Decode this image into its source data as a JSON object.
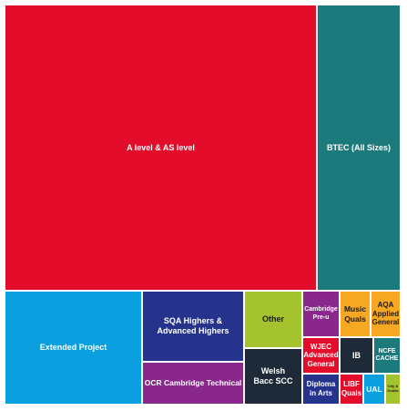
{
  "chart_data": {
    "type": "treemap",
    "title": "",
    "tiles": [
      {
        "label": "A level & AS level",
        "color": "#e30d2b",
        "text_color": "#ffffff"
      },
      {
        "label": "BTEC (All Sizes)",
        "color": "#1d7a7c",
        "text_color": "#ffffff"
      },
      {
        "label": "Extended Project",
        "color": "#0a9fdf",
        "text_color": "#ffffff"
      },
      {
        "label": "SQA Highers & Advanced Highers",
        "color": "#26338c",
        "text_color": "#ffffff"
      },
      {
        "label": "OCR Cambridge Technical",
        "color": "#8a278c",
        "text_color": "#ffffff"
      },
      {
        "label": "Other",
        "color": "#a5c32e",
        "text_color": "#1a1a1a"
      },
      {
        "label": "Welsh Bacc SCC",
        "color": "#1e2a38",
        "text_color": "#ffffff"
      },
      {
        "label": "Cambridge Pre-u",
        "color": "#8a278c",
        "text_color": "#ffffff"
      },
      {
        "label": "WJEC Advanced General",
        "color": "#e30d2b",
        "text_color": "#ffffff"
      },
      {
        "label": "Diploma in Arts",
        "color": "#26338c",
        "text_color": "#ffffff"
      },
      {
        "label": "Music Quals",
        "color": "#f7a822",
        "text_color": "#1a1a1a"
      },
      {
        "label": "AQA Applied General",
        "color": "#f7a822",
        "text_color": "#1a1a1a"
      },
      {
        "label": "IB",
        "color": "#1e2a38",
        "text_color": "#ffffff"
      },
      {
        "label": "NCFE CACHE",
        "color": "#1d7a7c",
        "text_color": "#ffffff"
      },
      {
        "label": "LIBF Quals",
        "color": "#e30d2b",
        "text_color": "#ffffff"
      },
      {
        "label": "UAL",
        "color": "#0a9fdf",
        "text_color": "#ffffff"
      },
      {
        "label": "City & Guilds",
        "color": "#a5c32e",
        "text_color": "#1a1a1a"
      }
    ]
  }
}
